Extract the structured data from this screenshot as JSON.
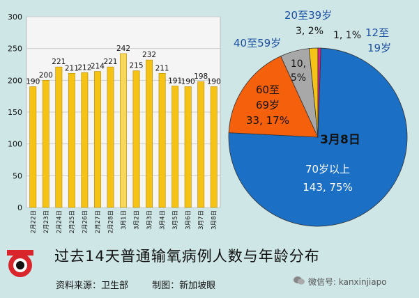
{
  "chart_data": [
    {
      "type": "bar",
      "categories": [
        "2月22日",
        "2月23日",
        "2月24日",
        "2月25日",
        "2月26日",
        "2月27日",
        "2月28日",
        "3月1日",
        "3月2日",
        "3月3日",
        "3月4日",
        "3月5日",
        "3月6日",
        "3月7日",
        "3月8日"
      ],
      "values": [
        190,
        200,
        221,
        211,
        212,
        214,
        221,
        242,
        215,
        232,
        211,
        191,
        190,
        198,
        190
      ],
      "yticks": [
        0,
        50,
        100,
        150,
        200,
        250,
        300
      ],
      "ylim": [
        0,
        300
      ],
      "color": "#f5c216",
      "highlight_color": "#f7d85a",
      "highlight_index": 7
    },
    {
      "type": "pie",
      "title": "3月8日",
      "slices": [
        {
          "label": "70岁以上",
          "value": 143,
          "percent": "75%",
          "display": [
            "70岁以上",
            "143, 75%"
          ],
          "color": "#1b6fc4"
        },
        {
          "label": "60至69岁",
          "value": 33,
          "percent": "17%",
          "display": [
            "60至",
            "69岁",
            "33, 17%"
          ],
          "color": "#f4600c"
        },
        {
          "label": "40至59岁",
          "value": 10,
          "percent": "5%",
          "display": [
            "10,",
            "5%"
          ],
          "color": "#a8a8a8"
        },
        {
          "label": "20至39岁",
          "value": 3,
          "percent": "2%",
          "display": [
            "3, 2%"
          ],
          "color": "#f5c216"
        },
        {
          "label": "12至19岁",
          "value": 1,
          "percent": "1%",
          "display": [
            "1, 1%"
          ],
          "color": "#e0208a"
        }
      ],
      "outside_labels": {
        "age_40_59": "40至59岁",
        "age_20_39": "20至39岁",
        "age_12_19_line1": "12至",
        "age_12_19_line2": "19岁"
      }
    }
  ],
  "title": "过去14天普通输氧病例人数与年龄分布",
  "source": "资料来源：卫生部",
  "credit": "制图：新加坡眼",
  "watermark": "微信号: kanxinjiapo",
  "logo_text": "新加坡眼"
}
